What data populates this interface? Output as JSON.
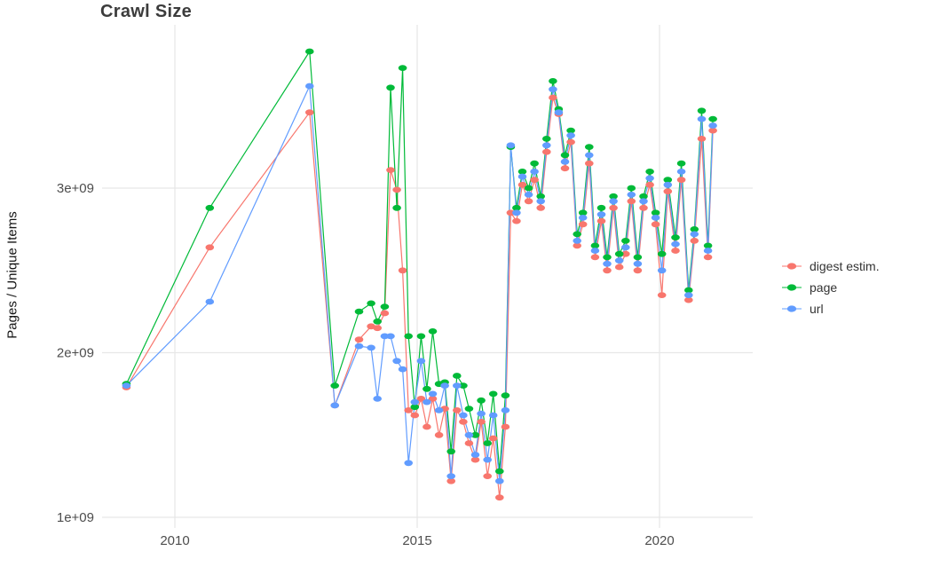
{
  "title": "Crawl Size",
  "colors": {
    "digest": "#F8766D",
    "page": "#00BA38",
    "url": "#619CFF",
    "grid": "#E7E7E7",
    "tick_text": "#4D4D4D",
    "title_text": "#3C3C3C",
    "axis_label_text": "#141414",
    "background": "#FFFFFF"
  },
  "legend": {
    "position": "right",
    "items": [
      "digest estim.",
      "page",
      "url"
    ]
  },
  "chart_data": {
    "type": "line",
    "title": "Crawl Size",
    "xlabel": "",
    "ylabel": "Pages / Unique Items",
    "value_units": "items, stored in billions (1e9)",
    "grid": true,
    "legend_position": "right",
    "x_ticks": [
      2010,
      2015,
      2020
    ],
    "y_ticks_billions": [
      1,
      2,
      3
    ],
    "y_tick_labels": [
      "1e+09",
      "2e+09",
      "3e+09"
    ],
    "xlim": [
      2008.5,
      2021.9
    ],
    "ylim_billions": [
      1.0,
      3.98
    ],
    "x": [
      2009.0,
      2010.72,
      2012.78,
      2013.3,
      2013.8,
      2014.05,
      2014.18,
      2014.33,
      2014.45,
      2014.58,
      2014.7,
      2014.82,
      2014.95,
      2015.08,
      2015.2,
      2015.32,
      2015.45,
      2015.57,
      2015.7,
      2015.82,
      2015.95,
      2016.07,
      2016.2,
      2016.32,
      2016.45,
      2016.57,
      2016.7,
      2016.82,
      2016.93,
      2017.05,
      2017.17,
      2017.3,
      2017.42,
      2017.55,
      2017.67,
      2017.8,
      2017.92,
      2018.05,
      2018.17,
      2018.3,
      2018.42,
      2018.55,
      2018.67,
      2018.8,
      2018.92,
      2019.05,
      2019.17,
      2019.3,
      2019.42,
      2019.55,
      2019.67,
      2019.8,
      2019.92,
      2020.05,
      2020.17,
      2020.33,
      2020.45,
      2020.6,
      2020.72,
      2020.87,
      2021.0,
      2021.1
    ],
    "series": [
      {
        "name": "digest estim.",
        "color": "#F8766D",
        "values": [
          1.79,
          2.64,
          3.46,
          1.68,
          2.08,
          2.16,
          2.15,
          2.24,
          3.11,
          2.99,
          2.5,
          1.65,
          1.62,
          1.72,
          1.55,
          1.72,
          1.5,
          1.66,
          1.22,
          1.65,
          1.58,
          1.45,
          1.35,
          1.58,
          1.25,
          1.48,
          1.12,
          1.55,
          2.85,
          2.8,
          3.02,
          2.92,
          3.05,
          2.88,
          3.22,
          3.55,
          3.45,
          3.12,
          3.28,
          2.65,
          2.78,
          3.15,
          2.58,
          2.8,
          2.5,
          2.88,
          2.52,
          2.6,
          2.92,
          2.5,
          2.88,
          3.02,
          2.78,
          2.35,
          2.98,
          2.62,
          3.05,
          2.32,
          2.68,
          3.3,
          2.58,
          3.35
        ]
      },
      {
        "name": "page",
        "color": "#00BA38",
        "values": [
          1.81,
          2.88,
          3.83,
          1.8,
          2.25,
          2.3,
          2.19,
          2.28,
          3.61,
          2.88,
          3.73,
          2.1,
          1.67,
          2.1,
          1.78,
          2.13,
          1.81,
          1.82,
          1.4,
          1.86,
          1.8,
          1.66,
          1.5,
          1.71,
          1.45,
          1.75,
          1.28,
          1.74,
          3.25,
          2.88,
          3.1,
          3.0,
          3.15,
          2.95,
          3.3,
          3.65,
          3.48,
          3.2,
          3.35,
          2.72,
          2.85,
          3.25,
          2.65,
          2.88,
          2.58,
          2.95,
          2.6,
          2.68,
          3.0,
          2.58,
          2.95,
          3.1,
          2.85,
          2.6,
          3.05,
          2.7,
          3.15,
          2.38,
          2.75,
          3.47,
          2.65,
          3.42
        ]
      },
      {
        "name": "url",
        "color": "#619CFF",
        "values": [
          1.8,
          2.31,
          3.62,
          1.68,
          2.04,
          2.03,
          1.72,
          2.1,
          2.1,
          1.95,
          1.9,
          1.33,
          1.7,
          1.95,
          1.7,
          1.75,
          1.65,
          1.8,
          1.25,
          1.8,
          1.62,
          1.5,
          1.38,
          1.63,
          1.35,
          1.62,
          1.22,
          1.65,
          3.26,
          2.85,
          3.07,
          2.96,
          3.1,
          2.92,
          3.26,
          3.6,
          3.46,
          3.16,
          3.32,
          2.68,
          2.82,
          3.2,
          2.62,
          2.84,
          2.54,
          2.92,
          2.56,
          2.64,
          2.96,
          2.54,
          2.92,
          3.06,
          2.82,
          2.5,
          3.02,
          2.66,
          3.1,
          2.35,
          2.72,
          3.42,
          2.62,
          3.38
        ]
      }
    ]
  }
}
